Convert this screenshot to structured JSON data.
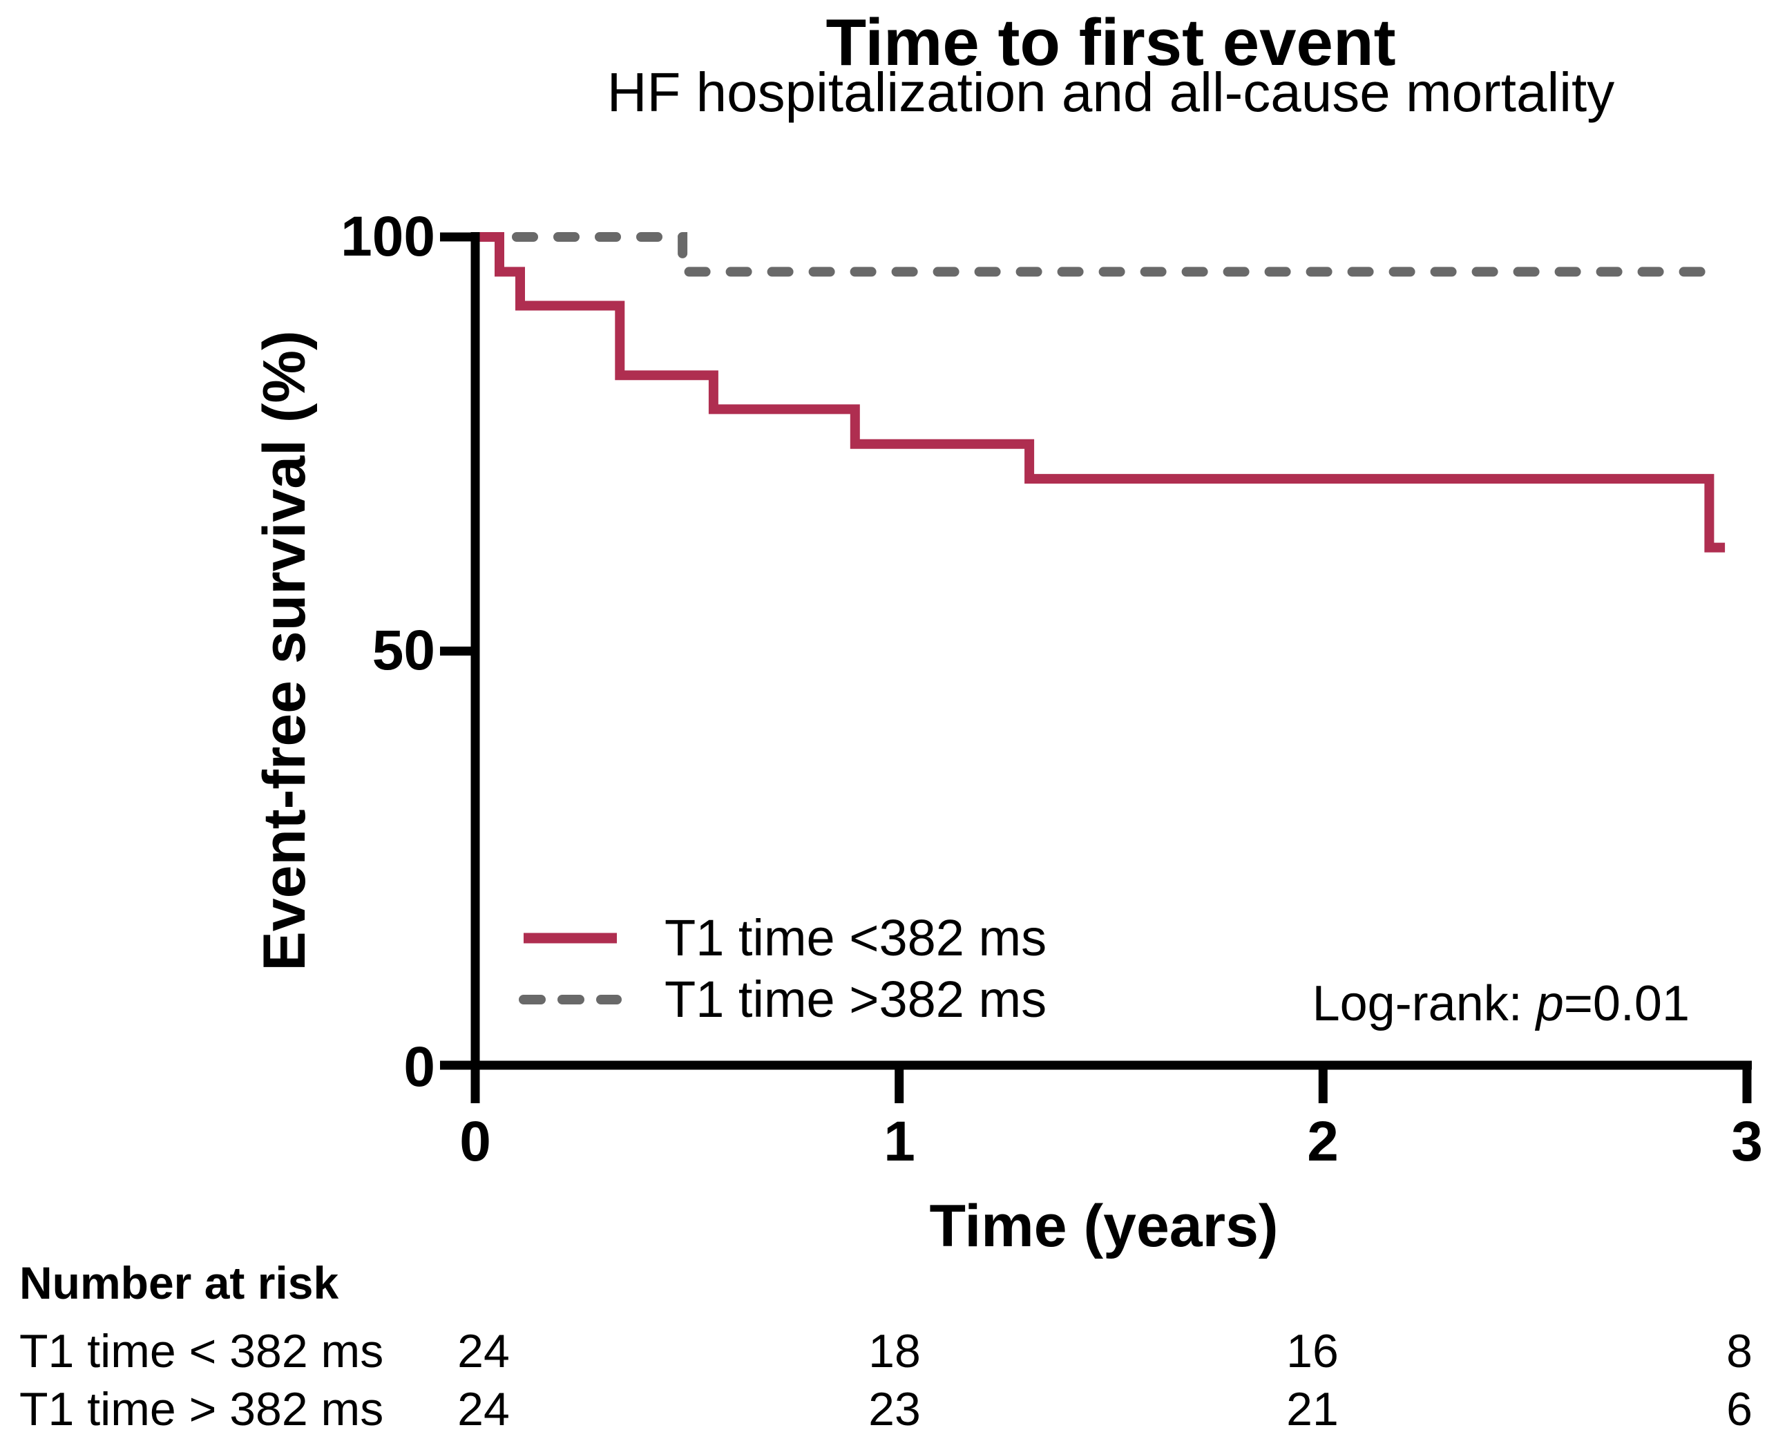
{
  "title": "Time to first event",
  "subtitle": "HF hospitalization and all-cause mortality",
  "y_axis": {
    "label": "Event-free survival (%)",
    "tick_labels": [
      "100",
      "50",
      "0"
    ]
  },
  "x_axis": {
    "label": "Time (years)",
    "tick_labels": [
      "0",
      "1",
      "2",
      "3"
    ]
  },
  "legend": {
    "items": [
      {
        "label": "T1 time <382 ms",
        "color": "#AF2E50",
        "style": "solid"
      },
      {
        "label": "T1 time >382 ms",
        "color": "#696969",
        "style": "dashed"
      }
    ]
  },
  "annotation": {
    "label": "Log-rank: ",
    "p": "p",
    "value": "=0.01"
  },
  "risk_table": {
    "header": "Number at risk",
    "time_points": [
      0,
      1,
      2,
      3
    ],
    "rows": [
      {
        "label": "T1 time < 382 ms",
        "values": [
          "24",
          "18",
          "16",
          "8"
        ]
      },
      {
        "label": "T1 time > 382 ms",
        "values": [
          "24",
          "23",
          "21",
          "6"
        ]
      }
    ]
  },
  "colors": {
    "curve_low_t1": "#AF2E50",
    "curve_high_t1": "#696969",
    "axis": "#000000",
    "background": "#ffffff"
  },
  "chart_data": {
    "type": "line",
    "subtype": "kaplan-meier-step",
    "title": "Time to first event",
    "subtitle": "HF hospitalization and all-cause mortality",
    "xlabel": "Time (years)",
    "ylabel": "Event-free survival (%)",
    "xlim": [
      0,
      3
    ],
    "ylim": [
      0,
      100
    ],
    "x_ticks": [
      0,
      1,
      2,
      3
    ],
    "y_ticks": [
      0,
      50,
      100
    ],
    "grid": false,
    "legend_position": "inside lower-left",
    "annotation": "Log-rank: p=0.01",
    "series": [
      {
        "name": "T1 time <382 ms",
        "color": "#AF2E50",
        "line_style": "solid",
        "events": [
          {
            "time": 0.06,
            "survival_pct": 95.8
          },
          {
            "time": 0.11,
            "survival_pct": 91.7
          },
          {
            "time": 0.34,
            "survival_pct": 83.3
          },
          {
            "time": 0.56,
            "survival_pct": 79.2
          },
          {
            "time": 0.9,
            "survival_pct": 75.0
          },
          {
            "time": 1.31,
            "survival_pct": 70.8
          },
          {
            "time": 2.91,
            "survival_pct": 62.5
          }
        ],
        "end_time": 2.95,
        "path_points": [
          [
            0,
            100
          ],
          [
            0.057,
            100
          ],
          [
            0.057,
            95.8
          ],
          [
            0.106,
            95.8
          ],
          [
            0.106,
            91.7
          ],
          [
            0.341,
            91.7
          ],
          [
            0.341,
            83.3
          ],
          [
            0.562,
            83.3
          ],
          [
            0.562,
            79.2
          ],
          [
            0.896,
            79.2
          ],
          [
            0.896,
            75.0
          ],
          [
            1.307,
            75.0
          ],
          [
            1.307,
            70.8
          ],
          [
            2.911,
            70.8
          ],
          [
            2.911,
            62.5
          ],
          [
            2.948,
            62.5
          ]
        ]
      },
      {
        "name": "T1 time >382 ms",
        "color": "#696969",
        "line_style": "dashed",
        "events": [
          {
            "time": 0.49,
            "survival_pct": 95.8
          }
        ],
        "end_time": 2.95,
        "path_points": [
          [
            0,
            100
          ],
          [
            0.489,
            100
          ],
          [
            0.489,
            95.8
          ],
          [
            2.948,
            95.8
          ]
        ]
      }
    ]
  }
}
